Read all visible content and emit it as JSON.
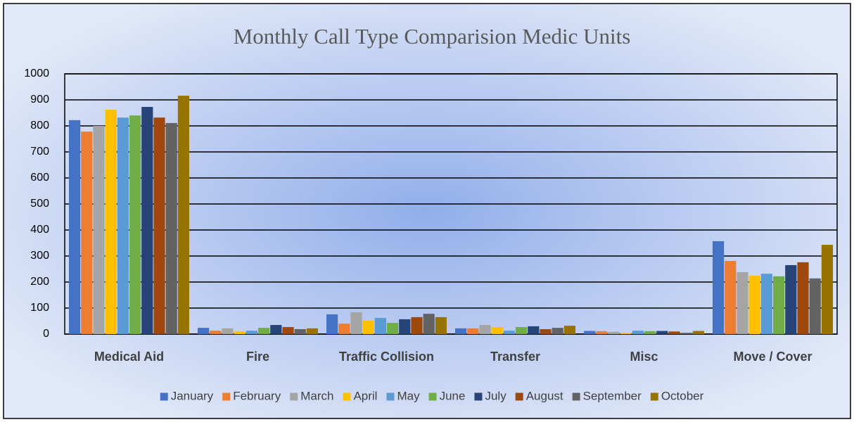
{
  "chart_data": {
    "type": "bar",
    "title": "Monthly Call Type Comparision Medic Units",
    "categories": [
      "Medical Aid",
      "Fire",
      "Traffic Collision",
      "Transfer",
      "Misc",
      "Move / Cover"
    ],
    "series": [
      {
        "name": "January",
        "color": "#4472c4",
        "values": [
          822,
          24,
          76,
          22,
          12,
          357
        ]
      },
      {
        "name": "February",
        "color": "#ed7d31",
        "values": [
          778,
          13,
          40,
          22,
          11,
          281
        ]
      },
      {
        "name": "March",
        "color": "#a5a5a5",
        "values": [
          800,
          22,
          84,
          35,
          9,
          238
        ]
      },
      {
        "name": "April",
        "color": "#ffc000",
        "values": [
          862,
          10,
          51,
          27,
          5,
          224
        ]
      },
      {
        "name": "May",
        "color": "#5b9bd5",
        "values": [
          832,
          13,
          62,
          13,
          13,
          232
        ]
      },
      {
        "name": "June",
        "color": "#70ad47",
        "values": [
          840,
          24,
          43,
          27,
          11,
          222
        ]
      },
      {
        "name": "July",
        "color": "#264478",
        "values": [
          873,
          35,
          57,
          30,
          12,
          265
        ]
      },
      {
        "name": "August",
        "color": "#9e480e",
        "values": [
          832,
          27,
          65,
          19,
          10,
          276
        ]
      },
      {
        "name": "September",
        "color": "#636363",
        "values": [
          811,
          19,
          78,
          24,
          5,
          214
        ]
      },
      {
        "name": "October",
        "color": "#997300",
        "values": [
          916,
          22,
          65,
          32,
          12,
          343
        ]
      }
    ],
    "ylim": [
      0,
      1000
    ],
    "yticks": [
      0,
      100,
      200,
      300,
      400,
      500,
      600,
      700,
      800,
      900,
      1000
    ],
    "grid": true,
    "legend": "bottom"
  }
}
